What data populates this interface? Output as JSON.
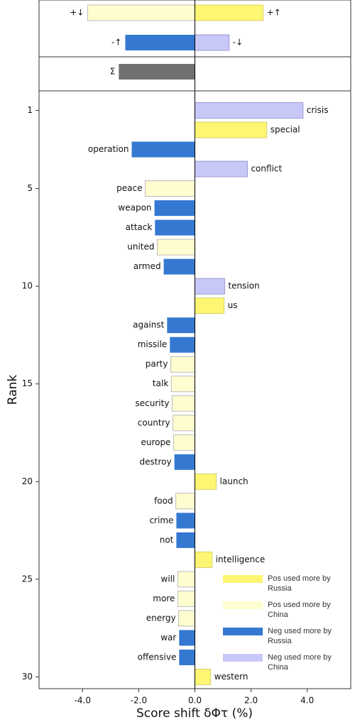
{
  "chart_data": {
    "type": "word-shift",
    "xlabel": "Score shift δΦτ (%)",
    "ylabel": "Rank",
    "xlim": [
      -5.55,
      5.55
    ],
    "xticks": [
      {
        "value": -4,
        "label": "-4.0"
      },
      {
        "value": -2,
        "label": "-2.0"
      },
      {
        "value": 0,
        "label": "0.0"
      },
      {
        "value": 2,
        "label": "2.0"
      },
      {
        "value": 4,
        "label": "4.0"
      }
    ],
    "ylim": [
      0,
      30.6
    ],
    "yticks": [
      1,
      5,
      10,
      15,
      20,
      25,
      30
    ],
    "summary": [
      {
        "label": "+↓",
        "value": -3.82,
        "color": "#fdfdd0"
      },
      {
        "label": "+↑",
        "value": 2.43,
        "color": "#fcf672"
      },
      {
        "label": "-↑",
        "value": -2.48,
        "color": "#3478d2"
      },
      {
        "label": "-↓",
        "value": 1.22,
        "color": "#c8c8f8"
      }
    ],
    "total": {
      "label": "Σ",
      "value": -2.71,
      "color": "#707070"
    },
    "categories": [
      "crisis",
      "special",
      "operation",
      "conflict",
      "peace",
      "weapon",
      "attack",
      "united",
      "armed",
      "tension",
      "us",
      "against",
      "missile",
      "party",
      "talk",
      "security",
      "country",
      "europe",
      "destroy",
      "launch",
      "food",
      "crime",
      "not",
      "intelligence",
      "will",
      "more",
      "energy",
      "war",
      "offensive",
      "western"
    ],
    "series": [
      {
        "name": "Pos used more by Russia",
        "color": "#fcf672",
        "values": [
          null,
          2.56,
          null,
          null,
          null,
          null,
          null,
          null,
          null,
          null,
          1.04,
          null,
          null,
          null,
          null,
          null,
          null,
          null,
          null,
          0.76,
          null,
          null,
          null,
          0.61,
          null,
          null,
          null,
          null,
          null,
          0.56
        ]
      },
      {
        "name": "Pos used more by China",
        "color": "#fdfdd0",
        "values": [
          null,
          null,
          null,
          null,
          -1.77,
          null,
          null,
          -1.34,
          null,
          null,
          null,
          null,
          null,
          -0.86,
          -0.84,
          -0.81,
          -0.78,
          -0.76,
          null,
          null,
          -0.68,
          null,
          null,
          null,
          -0.61,
          -0.61,
          -0.58,
          null,
          null,
          null
        ]
      },
      {
        "name": "Neg used more by Russia",
        "color": "#3478d2",
        "values": [
          null,
          null,
          -2.25,
          null,
          null,
          -1.44,
          -1.42,
          null,
          -1.11,
          null,
          null,
          -0.99,
          -0.89,
          null,
          null,
          null,
          null,
          null,
          -0.73,
          null,
          null,
          -0.66,
          -0.66,
          null,
          null,
          null,
          null,
          -0.56,
          -0.56,
          null
        ]
      },
      {
        "name": "Neg used more by China",
        "color": "#c8c8f8",
        "values": [
          3.85,
          null,
          null,
          1.87,
          null,
          null,
          null,
          null,
          null,
          1.06,
          null,
          null,
          null,
          null,
          null,
          null,
          null,
          null,
          null,
          null,
          null,
          null,
          null,
          null,
          null,
          null,
          null,
          null,
          null,
          null
        ]
      }
    ]
  }
}
